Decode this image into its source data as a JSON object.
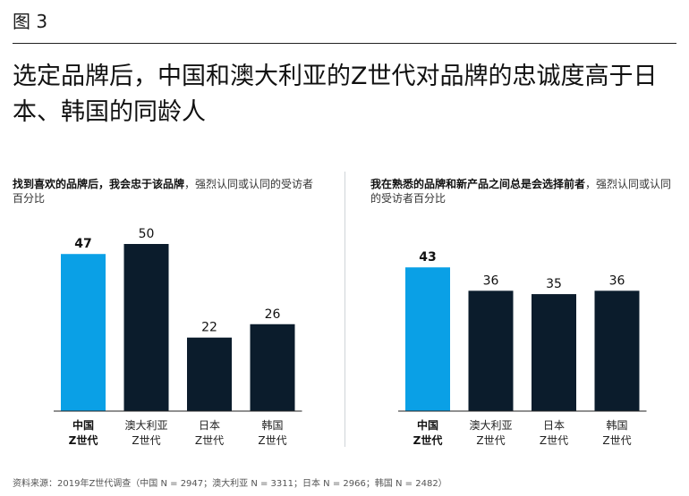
{
  "figure_label": "图 3",
  "headline": "选定品牌后，中国和澳大利亚的Z世代对品牌的忠诚度高于日本、韩国的同龄人",
  "colors": {
    "highlight": "#0aa0e6",
    "dark": "#0b1c2c",
    "axis": "#222222"
  },
  "chart_data": [
    {
      "type": "bar",
      "subtitle_bold": "找到喜欢的品牌后，我会忠于该品牌",
      "subtitle_rest": "，强烈认同或认同的受访者百分比",
      "categories": [
        {
          "line1": "中国",
          "line2": "Z世代",
          "highlight": true
        },
        {
          "line1": "澳大利亚",
          "line2": "Z世代",
          "highlight": false
        },
        {
          "line1": "日本",
          "line2": "Z世代",
          "highlight": false
        },
        {
          "line1": "韩国",
          "line2": "Z世代",
          "highlight": false
        }
      ],
      "values": [
        47,
        50,
        22,
        26
      ],
      "ylim": [
        0,
        50
      ]
    },
    {
      "type": "bar",
      "subtitle_bold": "我在熟悉的品牌和新产品之间总是会选择前者",
      "subtitle_rest": "，强烈认同或认同的受访者百分比",
      "categories": [
        {
          "line1": "中国",
          "line2": "Z世代",
          "highlight": true
        },
        {
          "line1": "澳大利亚",
          "line2": "Z世代",
          "highlight": false
        },
        {
          "line1": "日本",
          "line2": "Z世代",
          "highlight": false
        },
        {
          "line1": "韩国",
          "line2": "Z世代",
          "highlight": false
        }
      ],
      "values": [
        43,
        36,
        35,
        36
      ],
      "ylim": [
        0,
        50
      ]
    }
  ],
  "source": "资料来源：2019年Z世代调查（中国 N = 2947；澳大利亚 N = 3311；日本 N = 2966；韩国 N = 2482）"
}
